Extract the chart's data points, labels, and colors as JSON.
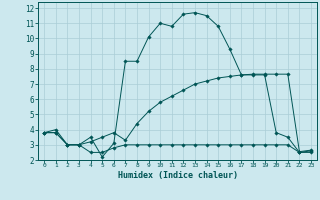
{
  "xlabel": "Humidex (Indice chaleur)",
  "bg_color": "#cce8ee",
  "grid_color": "#aacdd6",
  "line_color": "#005555",
  "xlim": [
    -0.5,
    23.5
  ],
  "ylim": [
    2,
    12.4
  ],
  "xticks": [
    0,
    1,
    2,
    3,
    4,
    5,
    6,
    7,
    8,
    9,
    10,
    11,
    12,
    13,
    14,
    15,
    16,
    17,
    18,
    19,
    20,
    21,
    22,
    23
  ],
  "yticks": [
    2,
    3,
    4,
    5,
    6,
    7,
    8,
    9,
    10,
    11,
    12
  ],
  "series": [
    {
      "x": [
        0,
        1,
        2,
        3,
        4,
        5,
        6,
        7,
        8,
        9,
        10,
        11,
        12,
        13,
        14,
        15,
        16,
        17,
        18,
        19,
        20,
        21,
        22,
        23
      ],
      "y": [
        3.8,
        4.0,
        3.0,
        3.0,
        3.5,
        2.2,
        3.1,
        8.5,
        8.5,
        10.1,
        11.0,
        10.8,
        11.6,
        11.7,
        11.5,
        10.8,
        9.3,
        7.6,
        7.6,
        7.6,
        3.8,
        3.5,
        2.5,
        2.6
      ]
    },
    {
      "x": [
        0,
        1,
        2,
        3,
        4,
        5,
        6,
        7,
        8,
        9,
        10,
        11,
        12,
        13,
        14,
        15,
        16,
        17,
        18,
        19,
        20,
        21,
        22,
        23
      ],
      "y": [
        3.8,
        3.8,
        3.0,
        3.0,
        3.2,
        3.5,
        3.8,
        3.3,
        4.4,
        5.2,
        5.8,
        6.2,
        6.6,
        7.0,
        7.2,
        7.4,
        7.5,
        7.6,
        7.65,
        7.65,
        7.65,
        7.65,
        2.55,
        2.65
      ]
    },
    {
      "x": [
        0,
        1,
        2,
        3,
        4,
        5,
        6,
        7,
        8,
        9,
        10,
        11,
        12,
        13,
        14,
        15,
        16,
        17,
        18,
        19,
        20,
        21,
        22,
        23
      ],
      "y": [
        3.8,
        3.8,
        3.0,
        3.0,
        2.5,
        2.5,
        2.8,
        3.0,
        3.0,
        3.0,
        3.0,
        3.0,
        3.0,
        3.0,
        3.0,
        3.0,
        3.0,
        3.0,
        3.0,
        3.0,
        3.0,
        3.0,
        2.5,
        2.5
      ]
    }
  ]
}
